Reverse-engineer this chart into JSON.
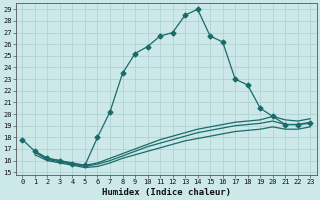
{
  "xlabel": "Humidex (Indice chaleur)",
  "bg_color": "#cce8e8",
  "line_color": "#1a6b6b",
  "grid_color": "#aacfcf",
  "ylim": [
    15,
    29
  ],
  "xlim": [
    -0.5,
    23.5
  ],
  "yticks": [
    15,
    16,
    17,
    18,
    19,
    20,
    21,
    22,
    23,
    24,
    25,
    26,
    27,
    28,
    29
  ],
  "xticks": [
    0,
    1,
    2,
    3,
    4,
    5,
    6,
    7,
    8,
    9,
    10,
    11,
    12,
    13,
    14,
    15,
    16,
    17,
    18,
    19,
    20,
    21,
    22,
    23
  ],
  "line1_x": [
    0,
    1,
    2,
    3,
    4,
    5,
    6,
    7,
    8,
    9,
    10,
    11,
    12,
    13,
    14,
    15,
    16,
    17,
    18,
    19,
    20,
    21,
    22,
    23
  ],
  "line1_y": [
    17.8,
    16.8,
    16.2,
    16.0,
    15.7,
    15.6,
    18.0,
    20.2,
    23.5,
    25.2,
    25.8,
    26.7,
    27.0,
    28.5,
    29.0,
    26.7,
    26.2,
    23.0,
    22.5,
    20.5,
    19.8,
    19.1,
    19.1,
    19.2
  ],
  "line2_x": [
    1,
    2,
    3,
    4,
    5,
    6,
    7,
    8,
    9,
    10,
    11,
    12,
    13,
    14,
    15,
    16,
    17,
    18,
    19,
    20,
    21,
    22,
    23
  ],
  "line2_y": [
    16.8,
    16.2,
    16.0,
    15.8,
    15.6,
    15.8,
    16.2,
    16.6,
    17.0,
    17.4,
    17.8,
    18.1,
    18.4,
    18.7,
    18.9,
    19.1,
    19.3,
    19.4,
    19.5,
    19.8,
    19.5,
    19.4,
    19.6
  ],
  "line3_x": [
    1,
    2,
    3,
    4,
    5,
    6,
    7,
    8,
    9,
    10,
    11,
    12,
    13,
    14,
    15,
    16,
    17,
    18,
    19,
    20,
    21,
    22,
    23
  ],
  "line3_y": [
    16.5,
    16.0,
    15.8,
    15.6,
    15.4,
    15.5,
    15.8,
    16.2,
    16.5,
    16.8,
    17.1,
    17.4,
    17.7,
    17.9,
    18.1,
    18.3,
    18.5,
    18.6,
    18.7,
    18.9,
    18.7,
    18.7,
    18.9
  ],
  "line4_x": [
    1,
    2,
    3,
    4,
    5,
    6,
    7,
    8,
    9,
    10,
    11,
    12,
    13,
    14,
    15,
    16,
    17,
    18,
    19,
    20,
    21,
    22,
    23
  ],
  "line4_y": [
    16.7,
    16.1,
    15.9,
    15.7,
    15.5,
    15.7,
    16.0,
    16.4,
    16.8,
    17.2,
    17.5,
    17.8,
    18.1,
    18.4,
    18.6,
    18.8,
    19.0,
    19.1,
    19.2,
    19.4,
    19.1,
    19.1,
    19.3
  ],
  "markersize": 2.5,
  "linewidth": 0.9
}
